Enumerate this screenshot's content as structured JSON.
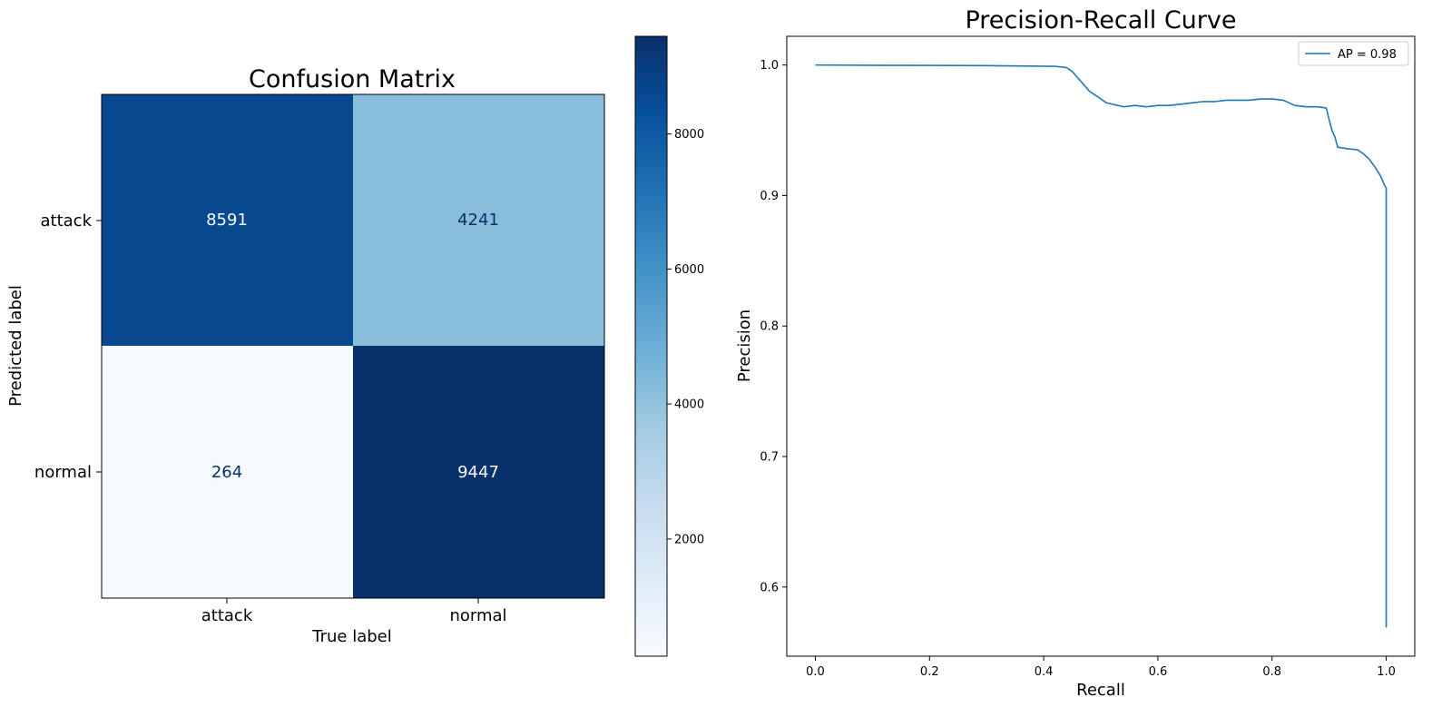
{
  "chart_data": [
    {
      "type": "heatmap",
      "title": "Confusion Matrix",
      "xlabel": "True label",
      "ylabel": "Predicted label",
      "x_categories": [
        "attack",
        "normal"
      ],
      "y_categories": [
        "attack",
        "normal"
      ],
      "values": [
        [
          8591,
          4241
        ],
        [
          264,
          9447
        ]
      ],
      "cell_colors": [
        [
          "#08488e",
          "#88bedc"
        ],
        [
          "#f7fbff",
          "#08306b"
        ]
      ],
      "cell_text_colors": [
        [
          "#f7fbff",
          "#08306b"
        ],
        [
          "#08306b",
          "#f7fbff"
        ]
      ],
      "colorbar": {
        "min": 264,
        "max": 9447,
        "ticks": [
          2000,
          4000,
          6000,
          8000
        ],
        "tick_labels": [
          "2000",
          "4000",
          "6000",
          "8000"
        ],
        "colormap": "Blues"
      }
    },
    {
      "type": "line",
      "title": "Precision-Recall Curve",
      "xlabel": "Recall",
      "ylabel": "Precision",
      "xlim": [
        -0.05,
        1.05
      ],
      "ylim": [
        0.547,
        1.022
      ],
      "xticks": [
        0.0,
        0.2,
        0.4,
        0.6,
        0.8,
        1.0
      ],
      "xtick_labels": [
        "0.0",
        "0.2",
        "0.4",
        "0.6",
        "0.8",
        "1.0"
      ],
      "yticks": [
        0.6,
        0.7,
        0.8,
        0.9,
        1.0
      ],
      "ytick_labels": [
        "0.6",
        "0.7",
        "0.8",
        "0.9",
        "1.0"
      ],
      "grid": false,
      "legend_position": "top-right",
      "series": [
        {
          "name": "AP = 0.98",
          "color": "#1f77b4",
          "x": [
            0.0,
            0.1,
            0.2,
            0.3,
            0.42,
            0.44,
            0.45,
            0.46,
            0.47,
            0.48,
            0.49,
            0.5,
            0.51,
            0.52,
            0.53,
            0.54,
            0.56,
            0.58,
            0.6,
            0.62,
            0.64,
            0.66,
            0.68,
            0.7,
            0.72,
            0.74,
            0.76,
            0.78,
            0.8,
            0.82,
            0.83,
            0.84,
            0.86,
            0.88,
            0.895,
            0.9,
            0.905,
            0.91,
            0.915,
            0.93,
            0.95,
            0.96,
            0.97,
            0.98,
            0.99,
            0.995,
            0.998,
            1.0,
            1.0,
            1.0
          ],
          "y": [
            1.0,
            0.9998,
            0.9997,
            0.9995,
            0.999,
            0.998,
            0.995,
            0.99,
            0.985,
            0.98,
            0.977,
            0.974,
            0.971,
            0.97,
            0.969,
            0.968,
            0.969,
            0.968,
            0.969,
            0.969,
            0.97,
            0.971,
            0.972,
            0.972,
            0.973,
            0.973,
            0.973,
            0.974,
            0.974,
            0.973,
            0.971,
            0.969,
            0.968,
            0.968,
            0.967,
            0.958,
            0.95,
            0.945,
            0.937,
            0.936,
            0.935,
            0.932,
            0.928,
            0.922,
            0.915,
            0.91,
            0.907,
            0.906,
            0.85,
            0.569
          ]
        }
      ]
    }
  ]
}
